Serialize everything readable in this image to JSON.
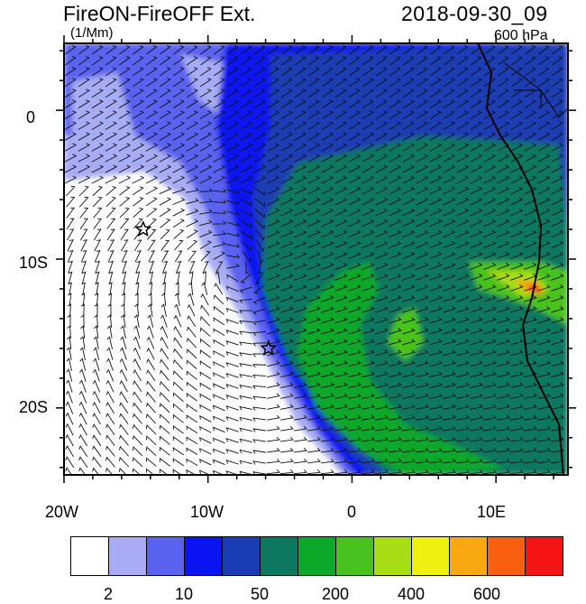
{
  "header": {
    "title": "FireON-FireOFF Ext.",
    "units": "(1/Mm)",
    "datetime": "2018-09-30_09",
    "level": "600 hPa"
  },
  "axes": {
    "x_ticks": [
      "20W",
      "10W",
      "0",
      "10E"
    ],
    "y_ticks": [
      "0",
      "10S",
      "20S"
    ],
    "lon_range": [
      -20,
      15
    ],
    "lat_range": [
      -24.5,
      4.5
    ]
  },
  "markers": [
    {
      "name": "star-marker-west",
      "lon": -14.5,
      "lat": -8
    },
    {
      "name": "star-marker-east",
      "lon": -5.8,
      "lat": -16
    }
  ],
  "colorbar": {
    "colors": [
      "#ffffff",
      "#a8acf4",
      "#5a62f0",
      "#0a14f0",
      "#1a3cb4",
      "#0c7860",
      "#0ca82a",
      "#48c21e",
      "#a8dc14",
      "#f0f010",
      "#f8a810",
      "#f86010",
      "#f41414"
    ],
    "labels": [
      "2",
      "10",
      "50",
      "200",
      "400",
      "600"
    ]
  }
}
